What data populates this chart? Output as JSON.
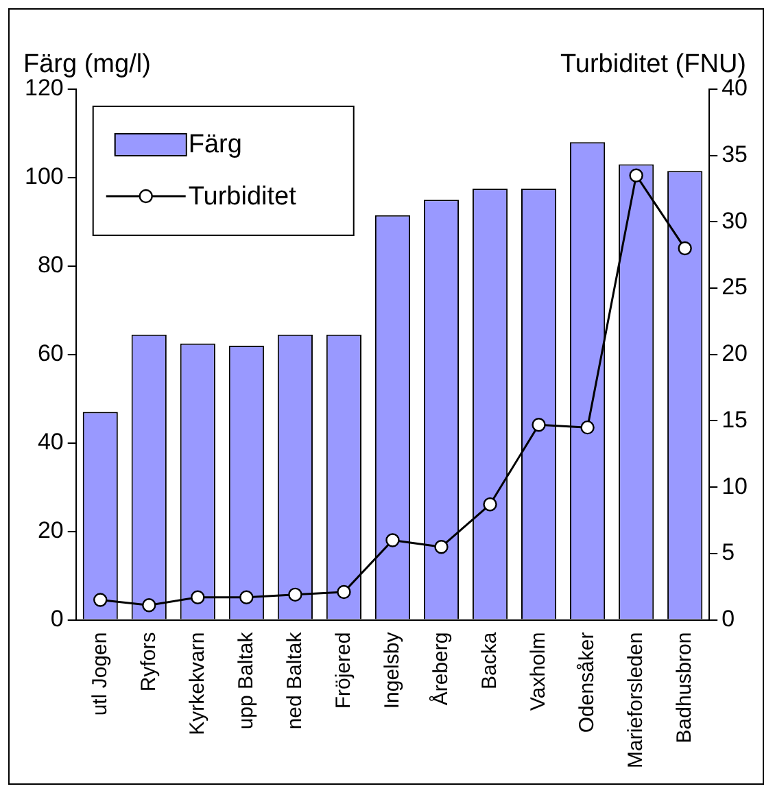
{
  "chart_data": {
    "type": "bar",
    "ylabel": "Färg (mg/l)",
    "y2label": "Turbiditet (FNU)",
    "categories": [
      "utl Jogen",
      "Ryfors",
      "Kyrkekvarn",
      "upp Baltak",
      "ned Baltak",
      "Fröjered",
      "Ingelsby",
      "Åreberg",
      "Backa",
      "Vaxholm",
      "Odensåker",
      "Marieforsleden",
      "Badhusbron"
    ],
    "series": [
      {
        "name": "Färg",
        "color": "#9999ff",
        "values": [
          47,
          64.5,
          62.5,
          62,
          64.5,
          64.5,
          91.5,
          95,
          97.5,
          97.5,
          108,
          103,
          101.5
        ]
      },
      {
        "name": "Turbiditet",
        "type": "line",
        "axis": "y2",
        "color": "#000000",
        "marker": "circle",
        "values": [
          1.5,
          1.1,
          1.7,
          1.7,
          1.9,
          2.1,
          6,
          5.5,
          8.7,
          14.7,
          14.5,
          33.5,
          28
        ]
      }
    ],
    "ylim": [
      0,
      120
    ],
    "yticks": [
      0,
      20,
      40,
      60,
      80,
      100,
      120
    ],
    "y2lim": [
      0,
      40
    ],
    "y2ticks": [
      0,
      5,
      10,
      15,
      20,
      25,
      30,
      35,
      40
    ],
    "grid": false,
    "legend": "top left"
  }
}
